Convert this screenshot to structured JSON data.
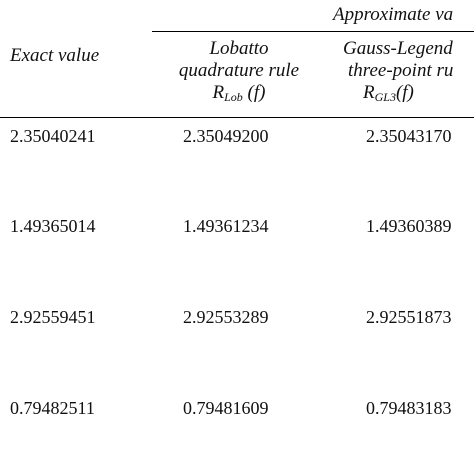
{
  "table": {
    "group_header": "Approximate va",
    "col_exact": "Exact value",
    "col_lobatto": {
      "line1": "Lobatto",
      "line2": "quadrature rule",
      "symbol_main": "R",
      "symbol_sub": "Lob",
      "symbol_arg": " (f)"
    },
    "col_gauss": {
      "line1": "Gauss-Legend",
      "line2": "three-point ru",
      "symbol_main": "R",
      "symbol_sub": "GL3",
      "symbol_arg": "(f)"
    },
    "rows": [
      {
        "exact": "2.35040241",
        "lobatto": "2.35049200",
        "gauss": "2.35043170"
      },
      {
        "exact": "1.49365014",
        "lobatto": "1.49361234",
        "gauss": "1.49360389"
      },
      {
        "exact": "2.92559451",
        "lobatto": "2.92553289",
        "gauss": "2.92551873"
      },
      {
        "exact": "0.79482511",
        "lobatto": "0.79481609",
        "gauss": "0.79483183"
      }
    ]
  }
}
